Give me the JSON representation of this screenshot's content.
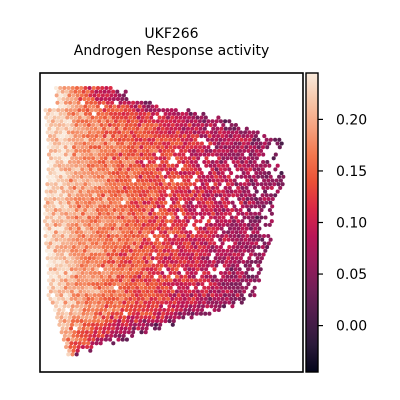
{
  "chart_data": {
    "type": "scatter",
    "title": "UKF266",
    "subtitle": "Androgen Response activity",
    "xlabel": "",
    "ylabel": "",
    "grid": false,
    "legend": "none",
    "colormap": "rocket",
    "colorbar": {
      "location": "right",
      "vmin": -0.045,
      "vmax": 0.245,
      "ticks": [
        0.0,
        0.05,
        0.1,
        0.15,
        0.2
      ],
      "tick_labels": [
        "0.00",
        "0.05",
        "0.10",
        "0.15",
        "0.20"
      ],
      "stops": [
        "#03051a",
        "#2b1a3a",
        "#4c1d4b",
        "#701f57",
        "#951c5b",
        "#b91657",
        "#d92847",
        "#ea5036",
        "#f3784f",
        "#f5a27f",
        "#f6c7aa",
        "#faebdd"
      ]
    },
    "description_of_points": "Spatial transcriptomics spots forming a tissue section; higher activity (light salmon, ~0.18-0.23) concentrated at the left edge, lower activity (dark purple, ~0.00-0.07) scattered toward the right."
  }
}
